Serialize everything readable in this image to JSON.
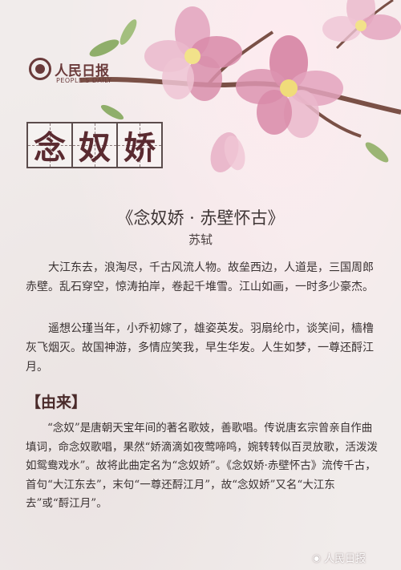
{
  "logo": {
    "cn": "人民日报",
    "en": "PEOPLE'S DAILY"
  },
  "title_chars": [
    "念",
    "奴",
    "娇"
  ],
  "poem_title": "《念奴娇 · 赤壁怀古》",
  "author": "苏轼",
  "poem": {
    "p1": "大江东去，浪淘尽，千古风流人物。故垒西边，人道是，三国周郎赤壁。乱石穿空，惊涛拍岸，卷起千堆雪。江山如画，一时多少豪杰。",
    "p2": "遥想公瑾当年，小乔初嫁了，雄姿英发。羽扇纶巾，谈笑间，樯橹灰飞烟灭。故国神游，多情应笑我，早生华发。人生如梦，一尊还酹江月。"
  },
  "origin": {
    "heading": "【由来】",
    "text": "“念奴”是唐朝天宝年间的著名歌妓，善歌唱。传说唐玄宗曾亲自作曲填词，命念奴歌唱，果然“娇滴滴如夜莺啼鸣，婉转转似百灵放歌，活泼泼如鸳鸯戏水”。故将此曲定名为“念奴娇”。《念奴娇·赤壁怀古》流传千古，首句“大江东去”，末句“一尊还酹江月”，故“念奴娇”又名“大江东去”或“酹江月”。"
  },
  "watermark": "人民日报",
  "icons": {
    "watermark": "weibo-icon",
    "logo": "at-icon"
  },
  "colors": {
    "background": "#f1eceb",
    "title_char": "#5a2a30",
    "blossom": "#d88aa8"
  }
}
